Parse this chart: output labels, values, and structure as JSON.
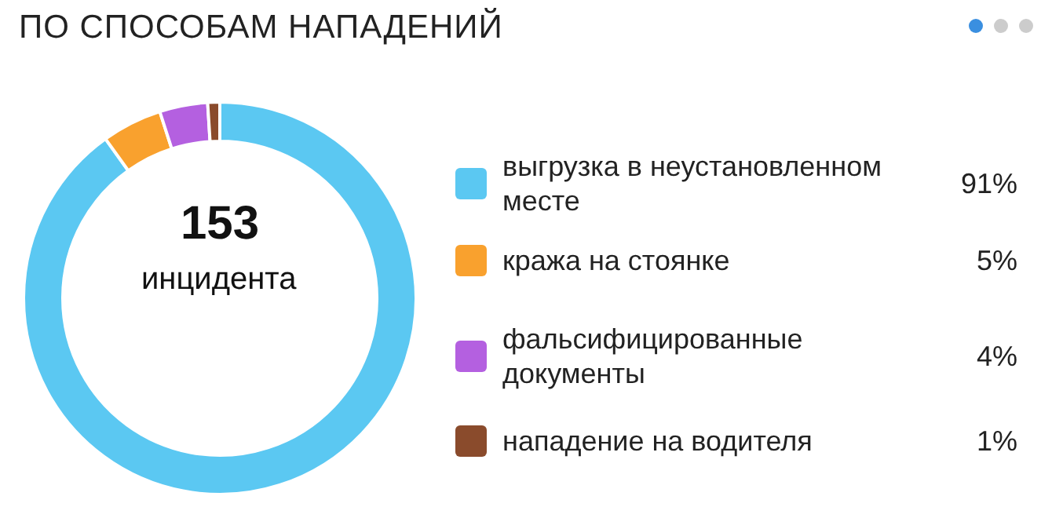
{
  "chart_data": {
    "type": "donut",
    "title": "ПО СПОСОБАМ НАПАДЕНИЙ",
    "categories": [
      "выгрузка в неустановленном месте",
      "кража на стоянке",
      "фальсифицированные документы",
      "нападение на водителя"
    ],
    "values": [
      91,
      5,
      4,
      1
    ],
    "colors": [
      "#5bc8f2",
      "#f9a12e",
      "#b460e0",
      "#8a4b2c"
    ],
    "value_labels": [
      "91%",
      "5%",
      "4%",
      "1%"
    ],
    "annotations": [
      "153",
      "инцидента"
    ],
    "legend": "right"
  }
}
